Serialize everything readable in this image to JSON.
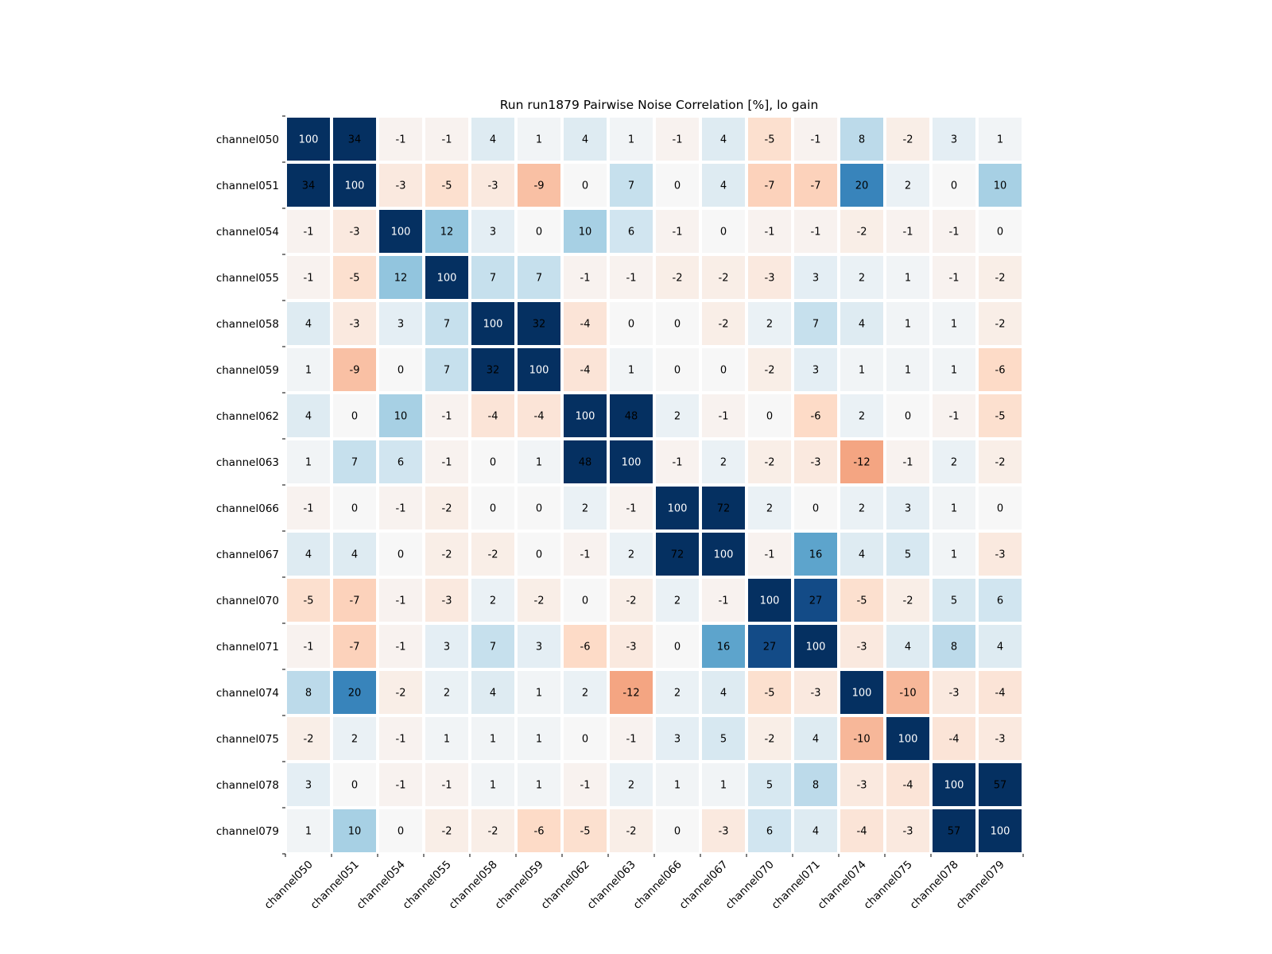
{
  "chart_data": {
    "type": "heatmap",
    "title": "Run run1879 Pairwise Noise Correlation [%], lo gain",
    "xlabel": "",
    "ylabel": "",
    "labels": [
      "channel050",
      "channel051",
      "channel054",
      "channel055",
      "channel058",
      "channel059",
      "channel062",
      "channel063",
      "channel066",
      "channel067",
      "channel070",
      "channel071",
      "channel074",
      "channel075",
      "channel078",
      "channel079"
    ],
    "color_range": [
      -30,
      30
    ],
    "colormap": "RdBu_r",
    "values": [
      [
        100,
        34,
        -1,
        -1,
        4,
        1,
        4,
        1,
        -1,
        4,
        -5,
        -1,
        8,
        -2,
        3,
        1
      ],
      [
        34,
        100,
        -3,
        -5,
        -3,
        -9,
        0,
        7,
        0,
        4,
        -7,
        -7,
        20,
        2,
        0,
        10
      ],
      [
        -1,
        -3,
        100,
        12,
        3,
        0,
        10,
        6,
        -1,
        0,
        -1,
        -1,
        -2,
        -1,
        -1,
        0
      ],
      [
        -1,
        -5,
        12,
        100,
        7,
        7,
        -1,
        -1,
        -2,
        -2,
        -3,
        3,
        2,
        1,
        -1,
        -2
      ],
      [
        4,
        -3,
        3,
        7,
        100,
        32,
        -4,
        0,
        0,
        -2,
        2,
        7,
        4,
        1,
        1,
        -2
      ],
      [
        1,
        -9,
        0,
        7,
        32,
        100,
        -4,
        1,
        0,
        0,
        -2,
        3,
        1,
        1,
        1,
        -6
      ],
      [
        4,
        0,
        10,
        -1,
        -4,
        -4,
        100,
        48,
        2,
        -1,
        0,
        -6,
        2,
        0,
        -1,
        -5
      ],
      [
        1,
        7,
        6,
        -1,
        0,
        1,
        48,
        100,
        -1,
        2,
        -2,
        -3,
        -12,
        -1,
        2,
        -2
      ],
      [
        -1,
        0,
        -1,
        -2,
        0,
        0,
        2,
        -1,
        100,
        72,
        2,
        0,
        2,
        3,
        1,
        0
      ],
      [
        4,
        4,
        0,
        -2,
        -2,
        0,
        -1,
        2,
        72,
        100,
        -1,
        16,
        4,
        5,
        1,
        -3
      ],
      [
        -5,
        -7,
        -1,
        -3,
        2,
        -2,
        0,
        -2,
        2,
        -1,
        100,
        27,
        -5,
        -2,
        5,
        6
      ],
      [
        -1,
        -7,
        -1,
        3,
        7,
        3,
        -6,
        -3,
        0,
        16,
        27,
        100,
        -3,
        4,
        8,
        4
      ],
      [
        8,
        20,
        -2,
        2,
        4,
        1,
        2,
        -12,
        2,
        4,
        -5,
        -3,
        100,
        -10,
        -3,
        -4
      ],
      [
        -2,
        2,
        -1,
        1,
        1,
        1,
        0,
        -1,
        3,
        5,
        -2,
        4,
        -10,
        100,
        -4,
        -3
      ],
      [
        3,
        0,
        -1,
        -1,
        1,
        1,
        -1,
        2,
        1,
        1,
        5,
        8,
        -3,
        -4,
        100,
        57
      ],
      [
        1,
        10,
        0,
        -2,
        -2,
        -6,
        -5,
        -2,
        0,
        -3,
        6,
        4,
        -4,
        -3,
        57,
        100
      ]
    ]
  }
}
